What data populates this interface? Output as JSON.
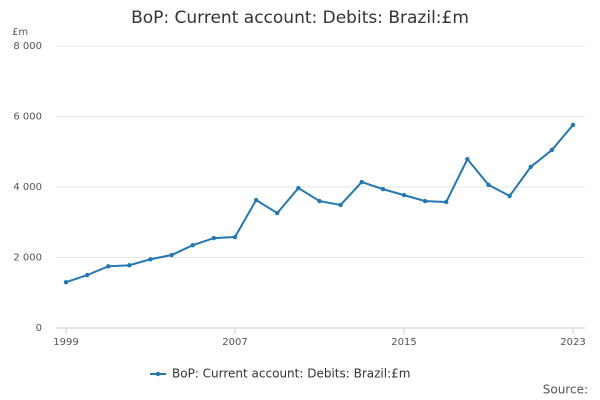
{
  "chart_data": {
    "type": "line",
    "title": "BoP: Current account: Debits: Brazil:£m",
    "y_label": "£m",
    "source": "Source:",
    "x": [
      1999,
      2000,
      2001,
      2002,
      2003,
      2004,
      2005,
      2006,
      2007,
      2008,
      2009,
      2010,
      2011,
      2012,
      2013,
      2014,
      2015,
      2016,
      2017,
      2018,
      2019,
      2020,
      2021,
      2022,
      2023
    ],
    "series": [
      {
        "name": "BoP: Current account: Debits: Brazil:£m",
        "color": "#2477b3",
        "values": [
          1300,
          1500,
          1750,
          1780,
          1950,
          2070,
          2350,
          2550,
          2580,
          3630,
          3260,
          3970,
          3600,
          3490,
          4140,
          3940,
          3770,
          3600,
          3575,
          4790,
          4060,
          3745,
          4570,
          5050,
          5760
        ]
      }
    ],
    "xlim": [
      1999,
      2023
    ],
    "xticks": [
      1999,
      2007,
      2015,
      2023
    ],
    "ylim": [
      0,
      8000
    ],
    "yticks": [
      0,
      {
        "value": 2000,
        "label": "2 000"
      },
      {
        "value": 4000,
        "label": "4 000"
      },
      {
        "value": 6000,
        "label": "6 000"
      },
      {
        "value": 8000,
        "label": "8 000"
      }
    ],
    "grid": true,
    "legend": "bottom"
  }
}
